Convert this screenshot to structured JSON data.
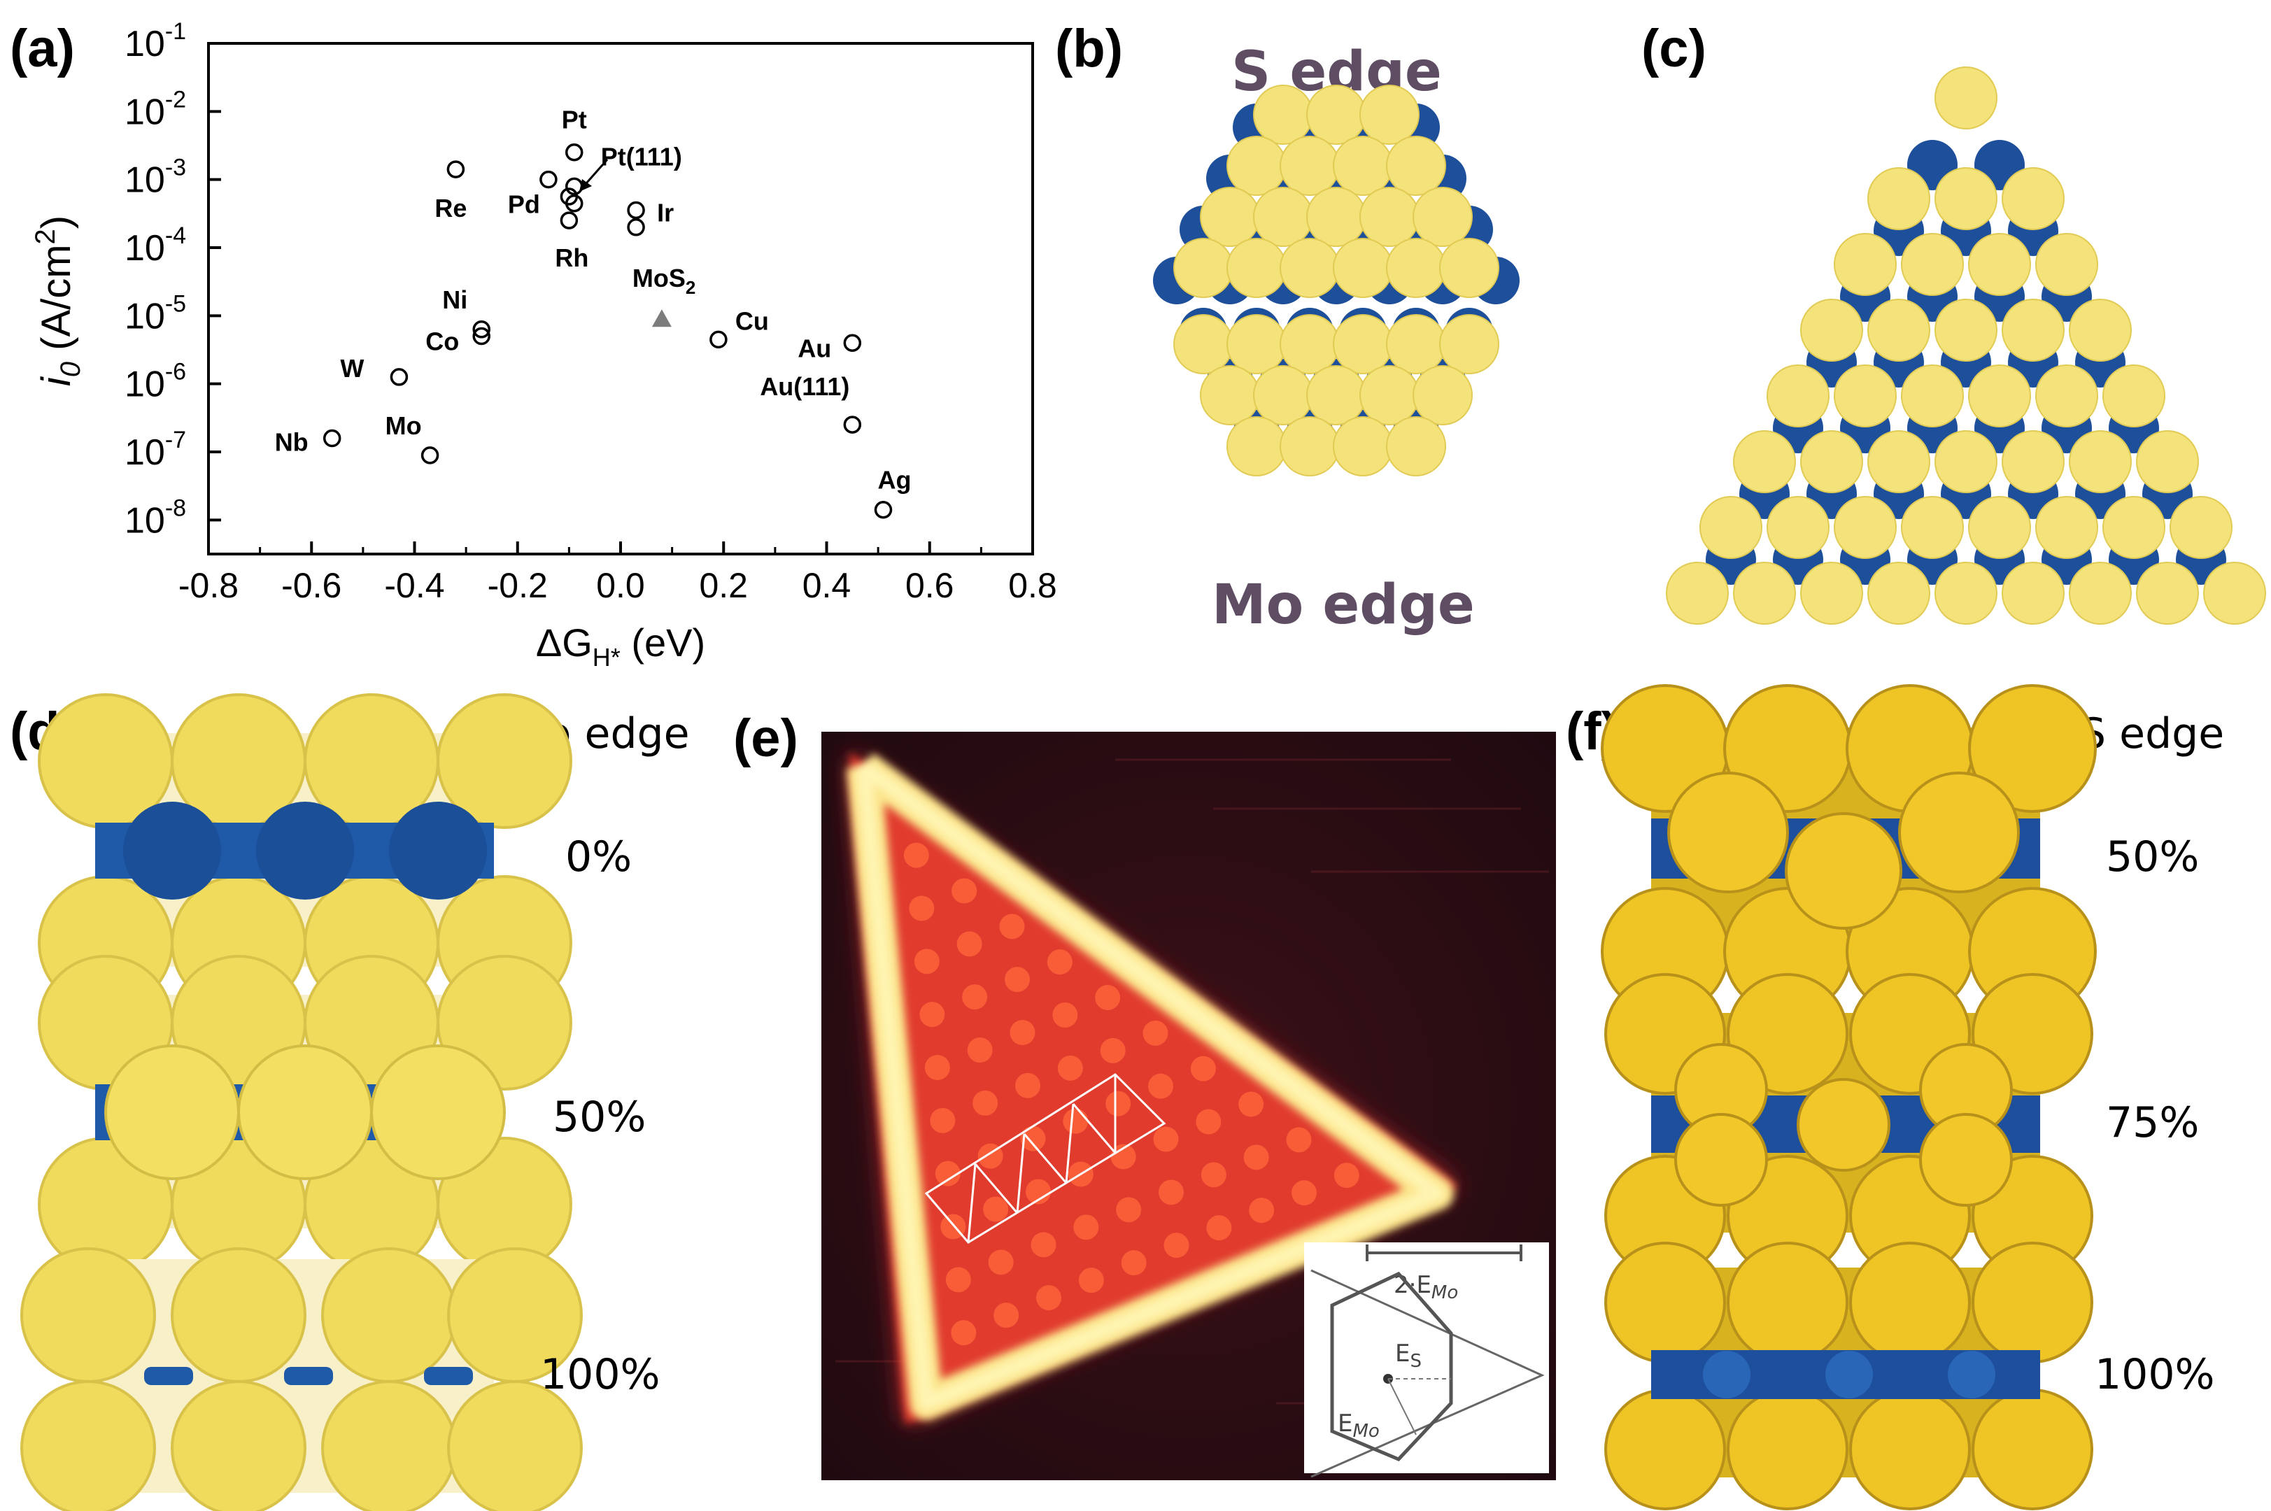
{
  "panels": {
    "a": {
      "label": "(a)"
    },
    "b": {
      "label": "(b)",
      "top_text": "S edge",
      "bottom_text": "Mo edge"
    },
    "c": {
      "label": "(c)"
    },
    "d": {
      "label": "(d)",
      "header": "Mo edge",
      "coverages": [
        "0%",
        "50%",
        "100%"
      ]
    },
    "e": {
      "label": "(e)",
      "inset": {
        "scale_label": "2·E",
        "scale_sub": "Mo",
        "es_label": "E",
        "es_sub": "S",
        "emo_label": "E",
        "emo_sub": "Mo"
      }
    },
    "f": {
      "label": "(f)",
      "header": "S edge",
      "coverages": [
        "50%",
        "75%",
        "100%"
      ]
    }
  },
  "chart_data": {
    "type": "scatter",
    "ylabel_main": "i",
    "ylabel_sub": "0",
    "ylabel_rest": " (A/cm",
    "ylabel_sup": "2",
    "ylabel_close": ")",
    "xlabel_main": "ΔG",
    "xlabel_sub": "H*",
    "xlabel_rest": " (eV)",
    "xlim": [
      -0.8,
      0.8
    ],
    "ylim_log10": [
      -8.5,
      -1
    ],
    "log_y": true,
    "grid": false,
    "x_ticks": [
      "-0.8",
      "-0.6",
      "-0.4",
      "-0.2",
      "0.0",
      "0.2",
      "0.4",
      "0.6",
      "0.8"
    ],
    "y_ticks": [
      {
        "base": "10",
        "exp": "-1",
        "log": -1
      },
      {
        "base": "10",
        "exp": "-2",
        "log": -2
      },
      {
        "base": "10",
        "exp": "-3",
        "log": -3
      },
      {
        "base": "10",
        "exp": "-4",
        "log": -4
      },
      {
        "base": "10",
        "exp": "-5",
        "log": -5
      },
      {
        "base": "10",
        "exp": "-6",
        "log": -6
      },
      {
        "base": "10",
        "exp": "-7",
        "log": -7
      },
      {
        "base": "10",
        "exp": "-8",
        "log": -8
      }
    ],
    "points": [
      {
        "name": "Nb",
        "x": -0.56,
        "log_y": -6.8,
        "marker": "circle"
      },
      {
        "name": "Mo",
        "x": -0.37,
        "log_y": -7.05,
        "marker": "circle"
      },
      {
        "name": "W",
        "x": -0.43,
        "log_y": -5.9,
        "marker": "circle"
      },
      {
        "name": "Co",
        "x": -0.27,
        "log_y": -5.3,
        "marker": "circle"
      },
      {
        "name": "Ni",
        "x": -0.27,
        "log_y": -5.2,
        "marker": "circle"
      },
      {
        "name": "Re",
        "x": -0.32,
        "log_y": -2.85,
        "marker": "circle"
      },
      {
        "name": "Pd",
        "x": -0.14,
        "log_y": -3.0,
        "marker": "circle"
      },
      {
        "name": "Pt",
        "x": -0.09,
        "log_y": -2.6,
        "marker": "circle"
      },
      {
        "name": "Pt(111)",
        "x": -0.09,
        "log_y": -3.1,
        "marker": "circle"
      },
      {
        "name": "",
        "x": -0.1,
        "log_y": -3.25,
        "marker": "circle"
      },
      {
        "name": "",
        "x": -0.09,
        "log_y": -3.35,
        "marker": "circle"
      },
      {
        "name": "Rh",
        "x": -0.1,
        "log_y": -3.6,
        "marker": "circle"
      },
      {
        "name": "Ir",
        "x": 0.03,
        "log_y": -3.45,
        "marker": "circle"
      },
      {
        "name": "",
        "x": 0.03,
        "log_y": -3.7,
        "marker": "circle"
      },
      {
        "name": "MoS",
        "name_sub": "2",
        "x": 0.08,
        "log_y": -5.05,
        "marker": "triangle"
      },
      {
        "name": "Cu",
        "x": 0.19,
        "log_y": -5.35,
        "marker": "circle"
      },
      {
        "name": "Au",
        "x": 0.45,
        "log_y": -5.4,
        "marker": "circle"
      },
      {
        "name": "Au(111)",
        "x": 0.45,
        "log_y": -6.6,
        "marker": "circle"
      },
      {
        "name": "Ag",
        "x": 0.51,
        "log_y": -7.85,
        "marker": "circle"
      }
    ]
  }
}
